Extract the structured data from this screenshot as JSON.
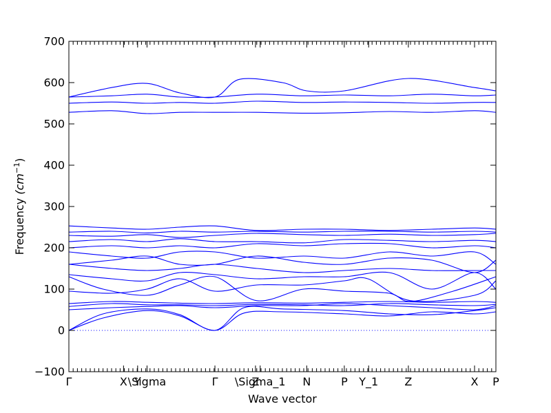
{
  "chart_data": {
    "type": "line",
    "title": "",
    "xlabel": "Wave vector",
    "ylabel": "Frequency (cm⁻¹)",
    "ylabel_main": "Frequency ",
    "ylabel_unit": "(cm",
    "ylabel_exp": "−1",
    "ylabel_close": ")",
    "ylim": [
      -100,
      700
    ],
    "yticks": [
      -100,
      0,
      100,
      200,
      300,
      400,
      500,
      600,
      700
    ],
    "xlim": [
      0,
      1
    ],
    "grid": false,
    "high_symmetry_points": [
      {
        "label": "Γ",
        "x": 0.0
      },
      {
        "label": "X",
        "x": 0.128
      },
      {
        "label": "Y",
        "x": 0.161
      },
      {
        "label": "\\Sigma",
        "x": 0.183
      },
      {
        "label": "Γ",
        "x": 0.342
      },
      {
        "label": "Z",
        "x": 0.437
      },
      {
        "label": "\\Sigma_1",
        "x": 0.448
      },
      {
        "label": "N",
        "x": 0.557
      },
      {
        "label": "P",
        "x": 0.645
      },
      {
        "label": "Y_1",
        "x": 0.702
      },
      {
        "label": "Z",
        "x": 0.795
      },
      {
        "label": "X",
        "x": 0.95
      },
      {
        "label": "P",
        "x": 1.0
      }
    ],
    "zero_line": 0,
    "series": [
      {
        "x": [
          0.0,
          0.08,
          0.183,
          0.26,
          0.342,
          0.41,
          0.5,
          0.645,
          0.75,
          0.85,
          0.95,
          1.0
        ],
        "y": [
          0,
          30,
          48,
          35,
          0,
          42,
          45,
          40,
          35,
          45,
          40,
          45
        ]
      },
      {
        "x": [
          0.0,
          0.08,
          0.183,
          0.26,
          0.342,
          0.41,
          0.5,
          0.645,
          0.75,
          0.85,
          0.95,
          1.0
        ],
        "y": [
          0,
          40,
          52,
          38,
          0,
          55,
          52,
          48,
          40,
          38,
          48,
          55
        ]
      },
      {
        "x": [
          0.0,
          0.1,
          0.183,
          0.26,
          0.342,
          0.44,
          0.55,
          0.645,
          0.75,
          0.85,
          0.95,
          1.0
        ],
        "y": [
          50,
          55,
          58,
          60,
          55,
          60,
          60,
          65,
          60,
          55,
          50,
          60
        ]
      },
      {
        "x": [
          0.0,
          0.1,
          0.183,
          0.26,
          0.342,
          0.44,
          0.55,
          0.645,
          0.75,
          0.85,
          0.95,
          1.0
        ],
        "y": [
          58,
          65,
          62,
          62,
          60,
          63,
          62,
          60,
          65,
          62,
          60,
          63
        ]
      },
      {
        "x": [
          0.0,
          0.1,
          0.183,
          0.26,
          0.342,
          0.44,
          0.55,
          0.645,
          0.75,
          0.85,
          0.95,
          1.0
        ],
        "y": [
          65,
          70,
          68,
          66,
          65,
          67,
          66,
          68,
          70,
          68,
          70,
          68
        ]
      },
      {
        "x": [
          0.0,
          0.08,
          0.183,
          0.26,
          0.342,
          0.44,
          0.55,
          0.645,
          0.75,
          0.8,
          0.9,
          1.0
        ],
        "y": [
          130,
          100,
          85,
          110,
          130,
          72,
          100,
          95,
          90,
          70,
          95,
          130
        ]
      },
      {
        "x": [
          0.0,
          0.1,
          0.183,
          0.26,
          0.342,
          0.44,
          0.55,
          0.645,
          0.7,
          0.8,
          0.95,
          1.0
        ],
        "y": [
          95,
          90,
          100,
          125,
          95,
          110,
          110,
          120,
          125,
          72,
          85,
          120
        ]
      },
      {
        "x": [
          0.0,
          0.1,
          0.183,
          0.26,
          0.342,
          0.44,
          0.55,
          0.645,
          0.75,
          0.85,
          0.95,
          1.0
        ],
        "y": [
          135,
          125,
          120,
          140,
          135,
          125,
          130,
          130,
          140,
          100,
          140,
          100
        ]
      },
      {
        "x": [
          0.0,
          0.1,
          0.183,
          0.26,
          0.342,
          0.44,
          0.55,
          0.645,
          0.75,
          0.85,
          0.95,
          1.0
        ],
        "y": [
          160,
          150,
          145,
          150,
          160,
          150,
          140,
          145,
          150,
          145,
          145,
          145
        ]
      },
      {
        "x": [
          0.0,
          0.1,
          0.183,
          0.26,
          0.342,
          0.44,
          0.55,
          0.645,
          0.75,
          0.85,
          0.95,
          1.0
        ],
        "y": [
          160,
          170,
          180,
          160,
          160,
          180,
          165,
          160,
          175,
          170,
          140,
          170
        ]
      },
      {
        "x": [
          0.0,
          0.1,
          0.183,
          0.26,
          0.342,
          0.44,
          0.55,
          0.645,
          0.75,
          0.85,
          0.95,
          1.0
        ],
        "y": [
          190,
          180,
          175,
          190,
          190,
          175,
          180,
          175,
          190,
          180,
          190,
          160
        ]
      },
      {
        "x": [
          0.0,
          0.1,
          0.183,
          0.26,
          0.342,
          0.44,
          0.55,
          0.645,
          0.75,
          0.85,
          0.95,
          1.0
        ],
        "y": [
          200,
          205,
          200,
          205,
          200,
          210,
          205,
          210,
          210,
          200,
          205,
          200
        ]
      },
      {
        "x": [
          0.0,
          0.1,
          0.183,
          0.26,
          0.342,
          0.44,
          0.55,
          0.645,
          0.75,
          0.85,
          0.95,
          1.0
        ],
        "y": [
          215,
          220,
          215,
          222,
          215,
          215,
          212,
          220,
          218,
          215,
          218,
          215
        ]
      },
      {
        "x": [
          0.0,
          0.1,
          0.183,
          0.26,
          0.342,
          0.44,
          0.55,
          0.645,
          0.75,
          0.85,
          0.95,
          1.0
        ],
        "y": [
          230,
          228,
          232,
          225,
          230,
          235,
          232,
          230,
          233,
          230,
          232,
          235
        ]
      },
      {
        "x": [
          0.0,
          0.1,
          0.183,
          0.26,
          0.342,
          0.44,
          0.55,
          0.645,
          0.75,
          0.85,
          0.95,
          1.0
        ],
        "y": [
          238,
          240,
          236,
          240,
          238,
          240,
          238,
          240,
          240,
          238,
          240,
          238
        ]
      },
      {
        "x": [
          0.0,
          0.1,
          0.183,
          0.26,
          0.342,
          0.44,
          0.55,
          0.645,
          0.75,
          0.85,
          0.95,
          1.0
        ],
        "y": [
          253,
          248,
          245,
          250,
          253,
          242,
          245,
          245,
          242,
          245,
          248,
          245
        ]
      },
      {
        "x": [
          0.0,
          0.1,
          0.183,
          0.26,
          0.342,
          0.44,
          0.55,
          0.645,
          0.75,
          0.85,
          0.95,
          1.0
        ],
        "y": [
          528,
          532,
          525,
          528,
          528,
          528,
          526,
          527,
          530,
          528,
          532,
          528
        ]
      },
      {
        "x": [
          0.0,
          0.1,
          0.183,
          0.26,
          0.342,
          0.44,
          0.55,
          0.645,
          0.75,
          0.85,
          0.95,
          1.0
        ],
        "y": [
          550,
          553,
          550,
          552,
          550,
          555,
          552,
          553,
          552,
          550,
          552,
          552
        ]
      },
      {
        "x": [
          0.0,
          0.1,
          0.183,
          0.26,
          0.342,
          0.44,
          0.55,
          0.645,
          0.75,
          0.85,
          0.95,
          1.0
        ],
        "y": [
          565,
          568,
          572,
          565,
          565,
          572,
          568,
          570,
          568,
          572,
          568,
          570
        ]
      },
      {
        "x": [
          0.0,
          0.1,
          0.183,
          0.26,
          0.342,
          0.4,
          0.5,
          0.557,
          0.645,
          0.795,
          0.95,
          1.0
        ],
        "y": [
          565,
          588,
          598,
          575,
          565,
          608,
          600,
          580,
          580,
          610,
          588,
          580
        ]
      }
    ]
  }
}
